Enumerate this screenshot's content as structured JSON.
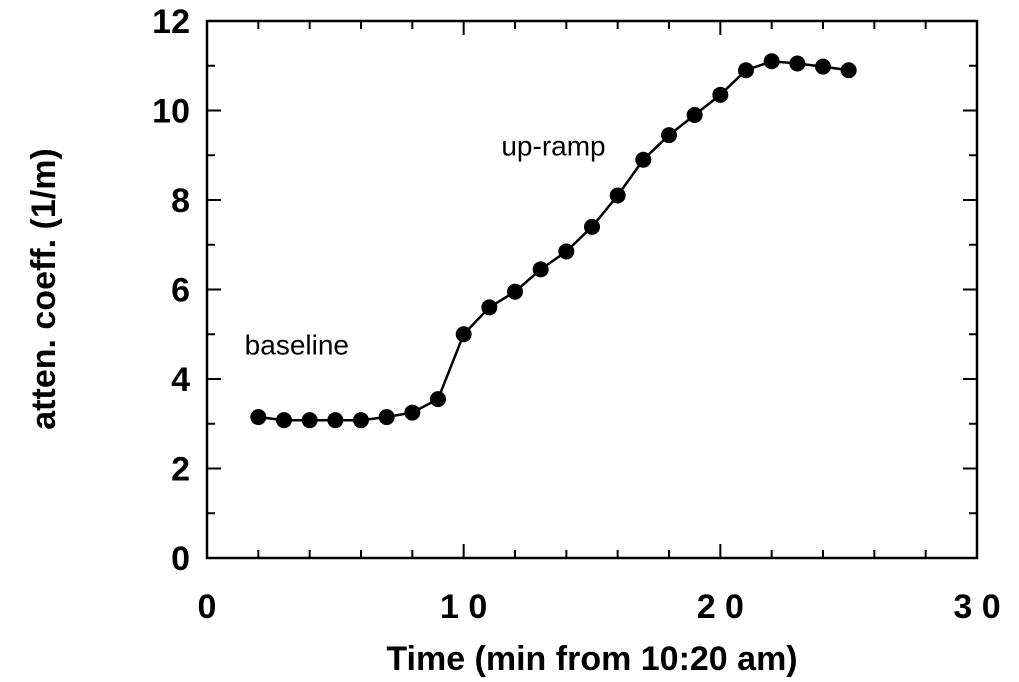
{
  "chart_data": {
    "type": "line",
    "title": "",
    "xlabel": "Time (min from 10:20 am)",
    "ylabel": "atten. coeff. (1/m)",
    "xlim": [
      0,
      30
    ],
    "ylim": [
      0,
      12
    ],
    "xticks": [
      {
        "value": 0,
        "label": "0"
      },
      {
        "value": 10,
        "label": "1 0"
      },
      {
        "value": 20,
        "label": "2 0"
      },
      {
        "value": 30,
        "label": "3 0"
      }
    ],
    "yticks": [
      {
        "value": 0,
        "label": "0"
      },
      {
        "value": 2,
        "label": "2"
      },
      {
        "value": 4,
        "label": "4"
      },
      {
        "value": 6,
        "label": "6"
      },
      {
        "value": 8,
        "label": "8"
      },
      {
        "value": 10,
        "label": "10"
      },
      {
        "value": 12,
        "label": "12"
      }
    ],
    "grid": false,
    "series": [
      {
        "x": [
          2,
          3,
          4,
          5,
          6,
          7,
          8,
          9,
          10,
          11,
          12,
          13,
          14,
          15,
          16,
          17,
          18,
          19,
          20,
          21,
          22,
          23,
          24,
          25
        ],
        "y": [
          3.15,
          3.08,
          3.08,
          3.08,
          3.08,
          3.15,
          3.25,
          3.55,
          5.0,
          5.6,
          5.95,
          6.45,
          6.85,
          7.4,
          8.1,
          8.9,
          9.45,
          9.9,
          10.35,
          10.9,
          11.1,
          11.05,
          10.98,
          10.9
        ]
      }
    ],
    "annotations": [
      {
        "text": "baseline",
        "x": 3.5,
        "y": 4.55
      },
      {
        "text": "up-ramp",
        "x": 13.5,
        "y": 9.0
      }
    ]
  }
}
